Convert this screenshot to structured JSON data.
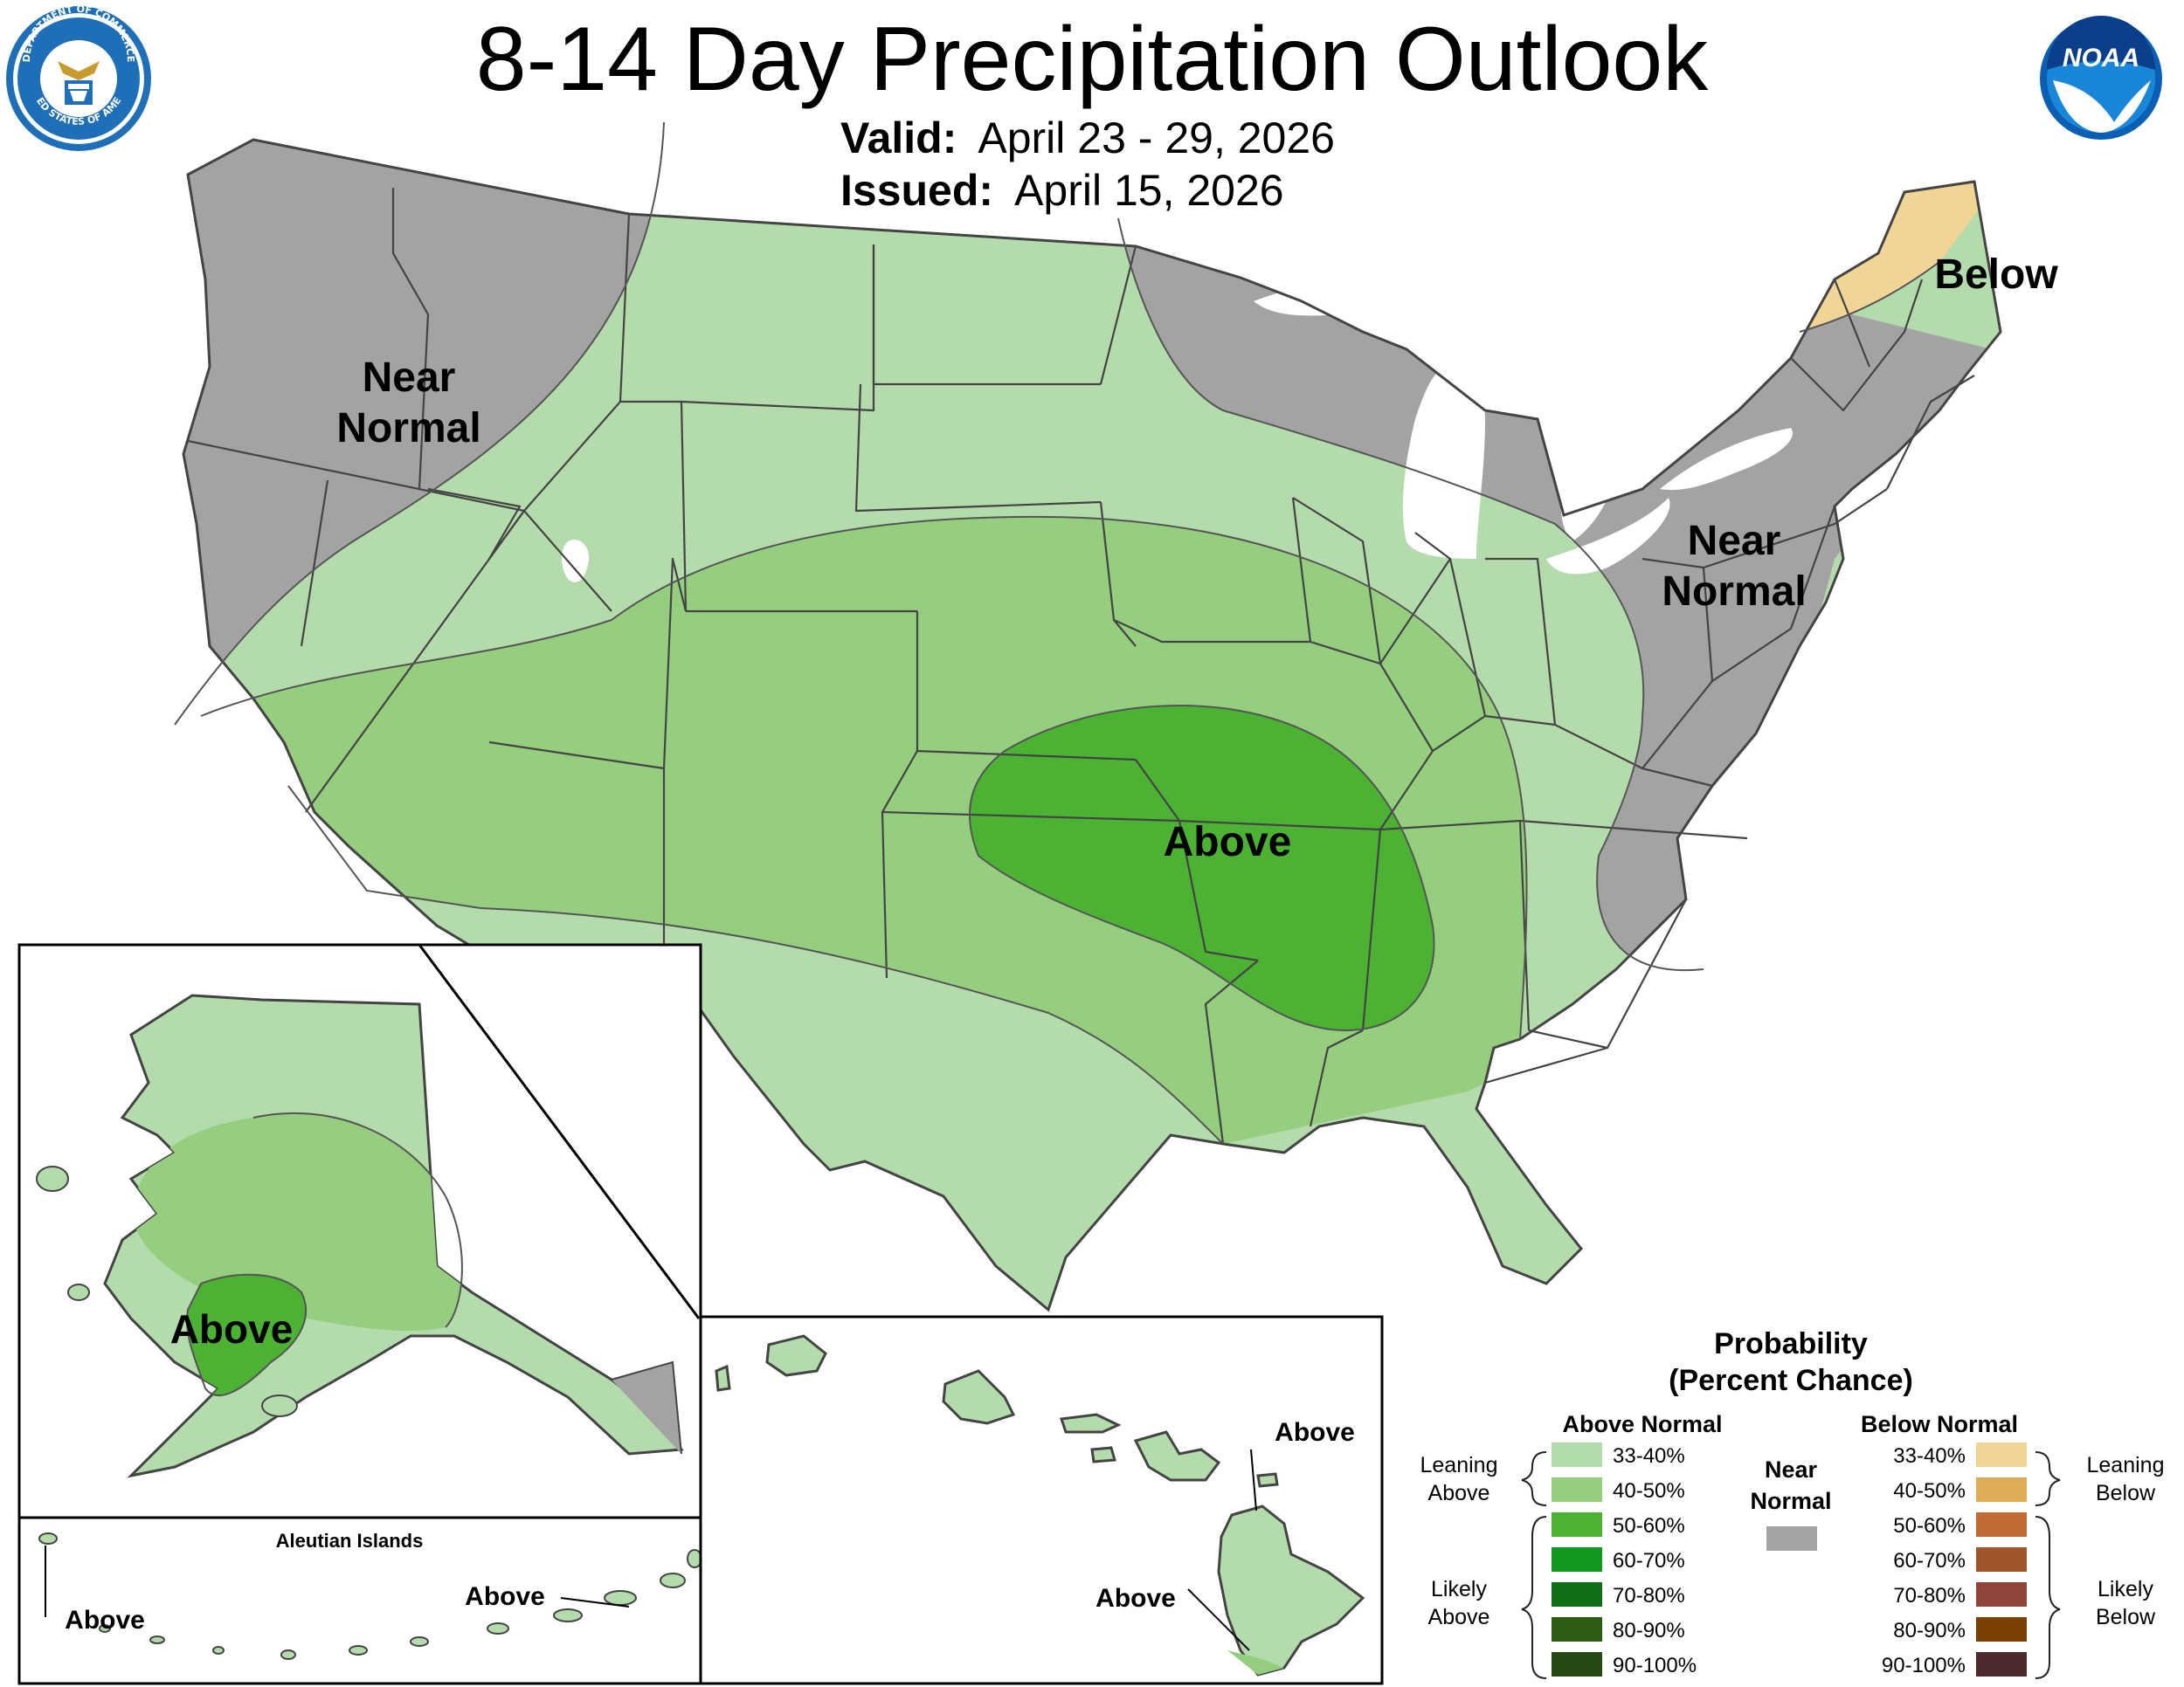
{
  "header": {
    "title": "8-14 Day Precipitation Outlook",
    "valid_label": "Valid:",
    "valid_dates": "April 23 - 29, 2026",
    "issued_label": "Issued:",
    "issued_date": "April 15, 2026"
  },
  "logos": {
    "doc_seal": "department-of-commerce-seal",
    "doc_seal_text_top": "DEPARTMENT OF COMMERCE",
    "doc_seal_text_bottom": "UNITED STATES OF AMERICA",
    "noaa": "NOAA"
  },
  "map_labels": {
    "west_near_normal_1": "Near",
    "west_near_normal_2": "Normal",
    "east_near_normal_1": "Near",
    "east_near_normal_2": "Normal",
    "northeast_below": "Below",
    "central_above": "Above",
    "alaska_above": "Above",
    "aleutian_title": "Aleutian Islands",
    "aleutian_above_west": "Above",
    "aleutian_above_east": "Above",
    "hawaii_above_north": "Above",
    "hawaii_above_south": "Above"
  },
  "legend": {
    "title_1": "Probability",
    "title_2": "(Percent Chance)",
    "above_header": "Above Normal",
    "below_header": "Below Normal",
    "near_1": "Near",
    "near_2": "Normal",
    "leaning_above_1": "Leaning",
    "leaning_above_2": "Above",
    "likely_above_1": "Likely",
    "likely_above_2": "Above",
    "leaning_below_1": "Leaning",
    "leaning_below_2": "Below",
    "likely_below_1": "Likely",
    "likely_below_2": "Below",
    "above_bins": [
      {
        "label": "33-40%",
        "color": "#b3dbab"
      },
      {
        "label": "40-50%",
        "color": "#94ce7e"
      },
      {
        "label": "50-60%",
        "color": "#4cb233"
      },
      {
        "label": "60-70%",
        "color": "#10991d"
      },
      {
        "label": "70-80%",
        "color": "#0f6f16"
      },
      {
        "label": "80-90%",
        "color": "#2d5c15"
      },
      {
        "label": "90-100%",
        "color": "#284a12"
      }
    ],
    "below_bins": [
      {
        "label": "33-40%",
        "color": "#f0d596"
      },
      {
        "label": "40-50%",
        "color": "#ddac57"
      },
      {
        "label": "50-60%",
        "color": "#bf6d32"
      },
      {
        "label": "60-70%",
        "color": "#a1552d"
      },
      {
        "label": "70-80%",
        "color": "#91443a"
      },
      {
        "label": "80-90%",
        "color": "#7c3f04"
      },
      {
        "label": "90-100%",
        "color": "#4b2a2b"
      }
    ],
    "near_color": "#a3a3a3"
  }
}
